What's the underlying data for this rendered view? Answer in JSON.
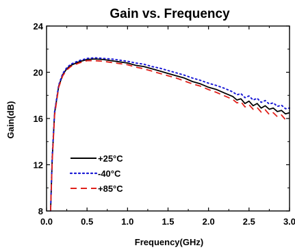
{
  "chart_data": {
    "type": "line",
    "title": "Gain vs. Frequency",
    "xlabel": "Frequency(GHz)",
    "ylabel": "Gain(dB)",
    "xlim": [
      0.0,
      3.0
    ],
    "ylim": [
      8,
      24
    ],
    "x_ticks": [
      0.0,
      0.5,
      1.0,
      1.5,
      2.0,
      2.5,
      3.0
    ],
    "x_tick_labels": [
      "0.0",
      "0.5",
      "1.0",
      "1.5",
      "2.0",
      "2.5",
      "3.0"
    ],
    "y_ticks": [
      8,
      12,
      16,
      20,
      24
    ],
    "y_tick_labels": [
      "8",
      "12",
      "16",
      "20",
      "24"
    ],
    "grid": false,
    "legend_position": "bottom-left",
    "series": [
      {
        "name": "+25°C",
        "color": "#000000",
        "dash": "solid",
        "points": [
          [
            0.05,
            8.0
          ],
          [
            0.07,
            12.5
          ],
          [
            0.1,
            16.5
          ],
          [
            0.15,
            18.8
          ],
          [
            0.2,
            19.8
          ],
          [
            0.25,
            20.3
          ],
          [
            0.3,
            20.6
          ],
          [
            0.4,
            20.9
          ],
          [
            0.5,
            21.1
          ],
          [
            0.6,
            21.15
          ],
          [
            0.7,
            21.1
          ],
          [
            0.8,
            21.0
          ],
          [
            0.9,
            20.9
          ],
          [
            1.0,
            20.8
          ],
          [
            1.1,
            20.6
          ],
          [
            1.2,
            20.5
          ],
          [
            1.3,
            20.3
          ],
          [
            1.4,
            20.1
          ],
          [
            1.5,
            19.9
          ],
          [
            1.6,
            19.7
          ],
          [
            1.7,
            19.5
          ],
          [
            1.8,
            19.2
          ],
          [
            1.9,
            19.0
          ],
          [
            2.0,
            18.7
          ],
          [
            2.1,
            18.5
          ],
          [
            2.2,
            18.2
          ],
          [
            2.3,
            17.9
          ],
          [
            2.35,
            17.6
          ],
          [
            2.4,
            17.7
          ],
          [
            2.45,
            17.3
          ],
          [
            2.5,
            17.5
          ],
          [
            2.55,
            17.1
          ],
          [
            2.6,
            17.3
          ],
          [
            2.65,
            16.9
          ],
          [
            2.7,
            17.1
          ],
          [
            2.75,
            16.8
          ],
          [
            2.8,
            16.9
          ],
          [
            2.85,
            16.6
          ],
          [
            2.9,
            16.7
          ],
          [
            2.95,
            16.4
          ],
          [
            3.0,
            16.5
          ]
        ]
      },
      {
        "name": "-40°C",
        "color": "#1a1ad6",
        "dash": "dotted",
        "points": [
          [
            0.05,
            8.0
          ],
          [
            0.07,
            12.7
          ],
          [
            0.1,
            16.6
          ],
          [
            0.15,
            18.9
          ],
          [
            0.2,
            19.9
          ],
          [
            0.25,
            20.4
          ],
          [
            0.3,
            20.7
          ],
          [
            0.4,
            21.0
          ],
          [
            0.5,
            21.2
          ],
          [
            0.6,
            21.25
          ],
          [
            0.7,
            21.2
          ],
          [
            0.8,
            21.15
          ],
          [
            0.9,
            21.05
          ],
          [
            1.0,
            20.95
          ],
          [
            1.1,
            20.8
          ],
          [
            1.2,
            20.7
          ],
          [
            1.3,
            20.5
          ],
          [
            1.4,
            20.35
          ],
          [
            1.5,
            20.15
          ],
          [
            1.6,
            19.95
          ],
          [
            1.7,
            19.75
          ],
          [
            1.8,
            19.5
          ],
          [
            1.9,
            19.3
          ],
          [
            2.0,
            19.05
          ],
          [
            2.1,
            18.85
          ],
          [
            2.2,
            18.6
          ],
          [
            2.3,
            18.3
          ],
          [
            2.35,
            18.05
          ],
          [
            2.4,
            18.15
          ],
          [
            2.45,
            17.8
          ],
          [
            2.5,
            17.95
          ],
          [
            2.55,
            17.6
          ],
          [
            2.6,
            17.75
          ],
          [
            2.65,
            17.4
          ],
          [
            2.7,
            17.55
          ],
          [
            2.75,
            17.25
          ],
          [
            2.8,
            17.35
          ],
          [
            2.85,
            17.05
          ],
          [
            2.9,
            17.15
          ],
          [
            2.95,
            16.85
          ],
          [
            3.0,
            16.9
          ]
        ]
      },
      {
        "name": "+85°C",
        "color": "#e0201a",
        "dash": "dashed",
        "points": [
          [
            0.05,
            8.0
          ],
          [
            0.07,
            12.3
          ],
          [
            0.1,
            16.3
          ],
          [
            0.15,
            18.7
          ],
          [
            0.2,
            19.7
          ],
          [
            0.25,
            20.2
          ],
          [
            0.3,
            20.5
          ],
          [
            0.4,
            20.8
          ],
          [
            0.5,
            21.0
          ],
          [
            0.6,
            21.0
          ],
          [
            0.7,
            20.95
          ],
          [
            0.8,
            20.85
          ],
          [
            0.9,
            20.75
          ],
          [
            1.0,
            20.65
          ],
          [
            1.1,
            20.45
          ],
          [
            1.2,
            20.3
          ],
          [
            1.3,
            20.1
          ],
          [
            1.4,
            19.9
          ],
          [
            1.5,
            19.7
          ],
          [
            1.6,
            19.5
          ],
          [
            1.7,
            19.25
          ],
          [
            1.8,
            19.0
          ],
          [
            1.9,
            18.8
          ],
          [
            2.0,
            18.5
          ],
          [
            2.1,
            18.25
          ],
          [
            2.2,
            17.95
          ],
          [
            2.3,
            17.65
          ],
          [
            2.35,
            17.35
          ],
          [
            2.4,
            17.45
          ],
          [
            2.45,
            17.0
          ],
          [
            2.5,
            17.2
          ],
          [
            2.55,
            16.8
          ],
          [
            2.6,
            16.95
          ],
          [
            2.65,
            16.55
          ],
          [
            2.7,
            16.75
          ],
          [
            2.75,
            16.35
          ],
          [
            2.8,
            16.5
          ],
          [
            2.85,
            16.15
          ],
          [
            2.9,
            16.3
          ],
          [
            2.95,
            15.9
          ],
          [
            3.0,
            16.0
          ]
        ]
      }
    ]
  }
}
